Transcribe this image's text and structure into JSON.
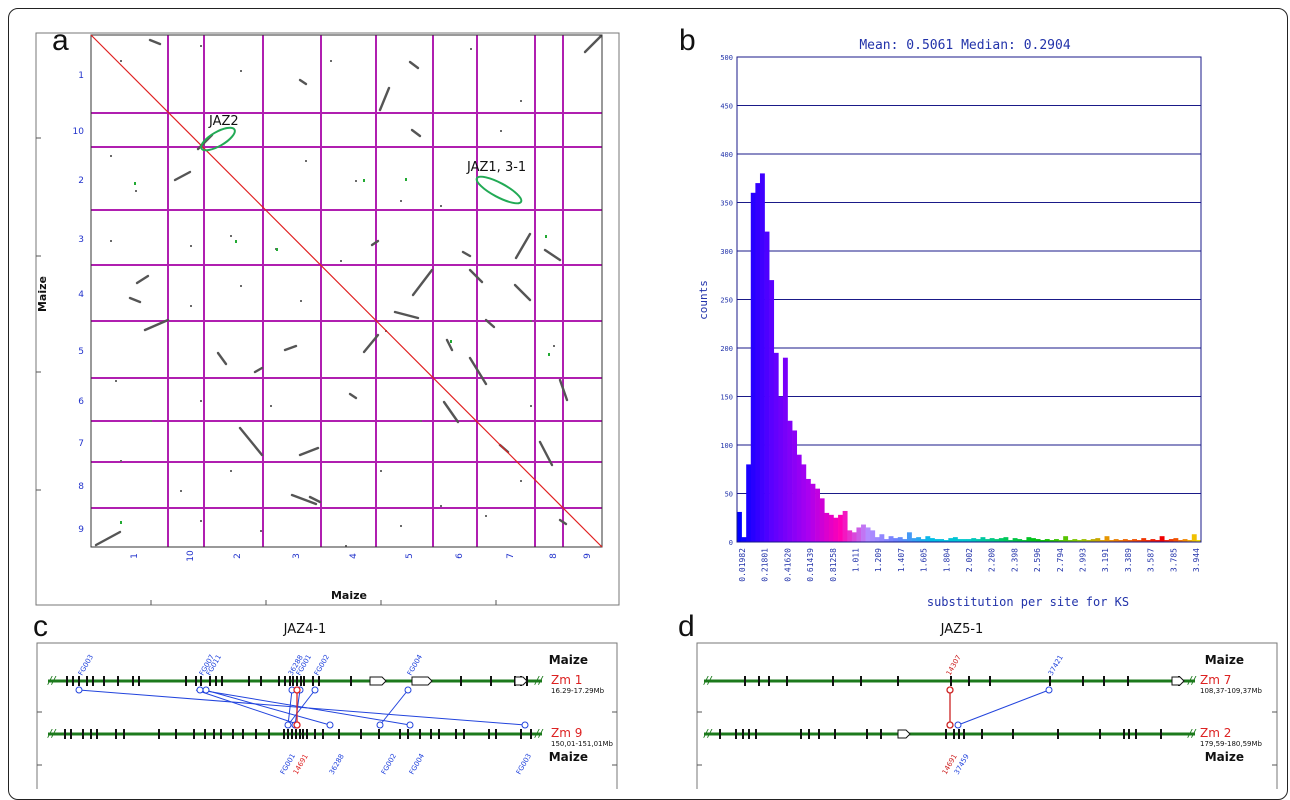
{
  "panels": {
    "a": {
      "label": "a",
      "xlabel": "Maize",
      "ylabel": "Maize",
      "row_chr": [
        "1",
        "10",
        "2",
        "3",
        "4",
        "5",
        "6",
        "7",
        "8",
        "9"
      ],
      "col_chr": [
        "1",
        "10",
        "2",
        "3",
        "4",
        "5",
        "6",
        "7",
        "8",
        "9"
      ],
      "annotations": [
        "JAZ2",
        "JAZ1, 3-1"
      ]
    },
    "b": {
      "label": "b"
    },
    "c": {
      "label": "c",
      "title": "JAZ4-1",
      "top_species": "Maize",
      "bottom_species": "Maize",
      "top_chr": "Zm 1",
      "top_range": "16.29-17.29Mb",
      "bottom_chr": "Zm 9",
      "bottom_range": "150,01-151,01Mb",
      "top_gene_labels": [
        "FG003",
        "FG007",
        "FG011",
        "36288",
        "FG002",
        "FG004",
        "FG001"
      ],
      "bottom_gene_labels": [
        "FG001",
        "36288",
        "FG002",
        "FG004",
        "FG003"
      ],
      "red_label": "14691"
    },
    "d": {
      "label": "d",
      "title": "JAZ5-1",
      "top_species": "Maize",
      "bottom_species": "Maize",
      "top_chr": "Zm 7",
      "top_range": "108,37-109,37Mb",
      "bottom_chr": "Zm 2",
      "bottom_range": "179,59-180,59Mb",
      "top_red_label": "14307",
      "top_blue_label": "37421",
      "bottom_red_label": "14691",
      "bottom_blue_label": "37459"
    }
  },
  "chart_data": {
    "type": "bar",
    "title": "Mean: 0.5061 Median: 0.2904",
    "xlabel": "substitution per site for KS",
    "ylabel": "counts",
    "ylim": [
      0,
      500
    ],
    "yticks": [
      0,
      50,
      100,
      150,
      200,
      250,
      300,
      350,
      400,
      450,
      500
    ],
    "xticks": [
      "0.01982",
      "0.21801",
      "0.41620",
      "0.61439",
      "0.81258",
      "1.011",
      "1.209",
      "1.407",
      "1.605",
      "1.804",
      "2.002",
      "2.200",
      "2.398",
      "2.596",
      "2.794",
      "2.993",
      "3.191",
      "3.389",
      "3.587",
      "3.785",
      "3.944"
    ],
    "grid": true,
    "values": [
      31,
      5,
      80,
      360,
      370,
      380,
      320,
      270,
      195,
      150,
      190,
      125,
      115,
      90,
      80,
      65,
      60,
      55,
      45,
      30,
      28,
      25,
      28,
      32,
      12,
      10,
      15,
      18,
      15,
      12,
      5,
      8,
      3,
      6,
      4,
      5,
      3,
      10,
      4,
      5,
      3,
      6,
      4,
      3,
      3,
      2,
      4,
      5,
      3,
      3,
      3,
      4,
      3,
      5,
      3,
      4,
      3,
      4,
      5,
      2,
      4,
      3,
      2,
      5,
      4,
      3,
      2,
      3,
      2,
      3,
      2,
      6,
      2,
      3,
      2,
      3,
      2,
      3,
      4,
      2,
      6,
      2,
      3,
      2,
      3,
      2,
      3,
      2,
      4,
      2,
      3,
      2,
      6,
      2,
      3,
      4,
      2,
      3,
      2,
      8,
      2
    ],
    "colors": [
      "#ff0000",
      "#ff8800",
      "#eedd00",
      "#00cc00",
      "#00cccc",
      "#3344ff",
      "#7700ff",
      "#ff00cc"
    ]
  }
}
